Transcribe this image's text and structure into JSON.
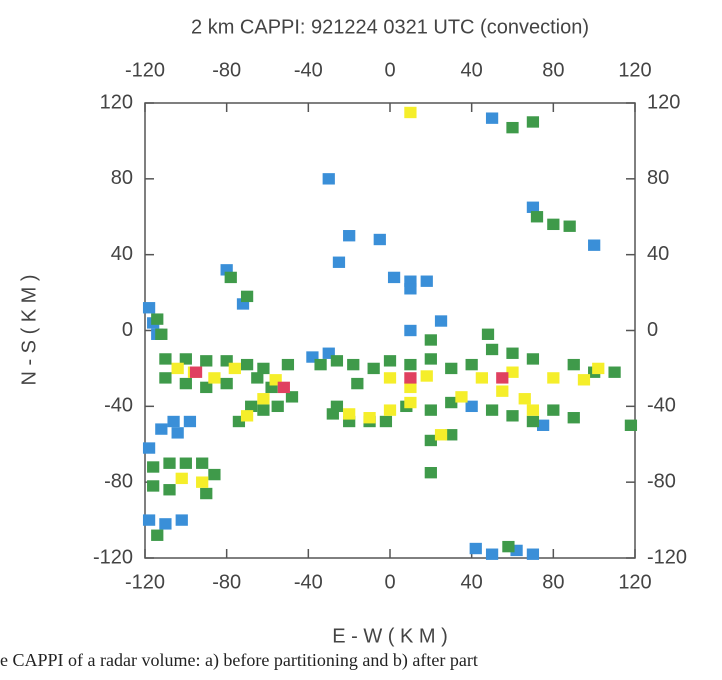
{
  "chart_data": {
    "type": "cappi",
    "title": "2 km CAPPI: 921224 0321 UTC (convection)",
    "xlabel": "E - W ( K M )",
    "ylabel": "N - S ( K M )",
    "caption": "e CAPPI of a radar volume: a) before partitioning and b) after part",
    "xlim": [
      -120,
      120
    ],
    "ylim": [
      -120,
      120
    ],
    "xticks": [
      -120,
      -80,
      -40,
      0,
      40,
      80,
      120
    ],
    "yticks": [
      -120,
      -80,
      -40,
      0,
      40,
      80,
      120
    ],
    "cell_size": 6,
    "series": [
      {
        "color": "#3a8fd8",
        "x": [
          -118,
          -116,
          -114,
          -98,
          -106,
          -112,
          -104,
          -118,
          -118,
          -110,
          -102,
          -30,
          -20,
          -5,
          -25,
          -80,
          -72,
          2,
          10,
          18,
          10,
          25,
          10,
          50,
          42,
          50,
          62,
          70,
          -38,
          -30,
          70,
          100,
          40,
          75
        ],
        "values": [
          12,
          4,
          -2,
          -48,
          -48,
          -52,
          -54,
          -62,
          -100,
          -102,
          -100,
          80,
          50,
          48,
          36,
          32,
          14,
          28,
          26,
          26,
          22,
          5,
          0,
          112,
          -115,
          -118,
          -116,
          -118,
          -14,
          -12,
          65,
          45,
          -40,
          -50
        ]
      },
      {
        "color": "#3f9a4a",
        "x": [
          -114,
          -112,
          -110,
          -100,
          -90,
          -80,
          -70,
          -62,
          -110,
          -100,
          -90,
          -80,
          -65,
          -74,
          -68,
          -62,
          -58,
          -50,
          -48,
          -55,
          -116,
          -108,
          -100,
          -92,
          -116,
          -108,
          -90,
          -86,
          -114,
          -34,
          -26,
          -18,
          -16,
          -8,
          0,
          10,
          20,
          30,
          40,
          50,
          60,
          70,
          90,
          100,
          110,
          -28,
          -20,
          -10,
          -2,
          8,
          20,
          30,
          50,
          60,
          70,
          80,
          90,
          30,
          20,
          20,
          58,
          60,
          70,
          72,
          80,
          88,
          -78,
          -70,
          20,
          48,
          -26,
          118
        ],
        "values": [
          6,
          -2,
          -15,
          -15,
          -16,
          -16,
          -18,
          -20,
          -25,
          -28,
          -30,
          -28,
          -25,
          -48,
          -40,
          -42,
          -30,
          -18,
          -35,
          -40,
          -72,
          -70,
          -70,
          -70,
          -82,
          -84,
          -86,
          -76,
          -108,
          -18,
          -16,
          -18,
          -28,
          -20,
          -16,
          -18,
          -15,
          -20,
          -18,
          -10,
          -12,
          -15,
          -18,
          -22,
          -22,
          -44,
          -48,
          -48,
          -48,
          -40,
          -42,
          -38,
          -42,
          -45,
          -48,
          -42,
          -46,
          -55,
          -58,
          -75,
          -114,
          107,
          110,
          60,
          56,
          55,
          28,
          18,
          -5,
          -2,
          -40,
          -50
        ]
      },
      {
        "color": "#f5ee2a",
        "x": [
          -104,
          -96,
          -86,
          -76,
          -70,
          -62,
          -56,
          -102,
          -92,
          0,
          10,
          18,
          35,
          45,
          55,
          60,
          66,
          70,
          80,
          95,
          102,
          -20,
          -10,
          0,
          25,
          10,
          10
        ],
        "values": [
          -20,
          -22,
          -25,
          -20,
          -45,
          -36,
          -26,
          -78,
          -80,
          -25,
          -30,
          -24,
          -35,
          -25,
          -32,
          -22,
          -36,
          -42,
          -25,
          -26,
          -20,
          -44,
          -46,
          -42,
          -55,
          115,
          -38
        ]
      },
      {
        "color": "#e04060",
        "x": [
          -52,
          10,
          55,
          -95
        ],
        "values": [
          -30,
          -25,
          -25,
          -22
        ]
      }
    ]
  }
}
